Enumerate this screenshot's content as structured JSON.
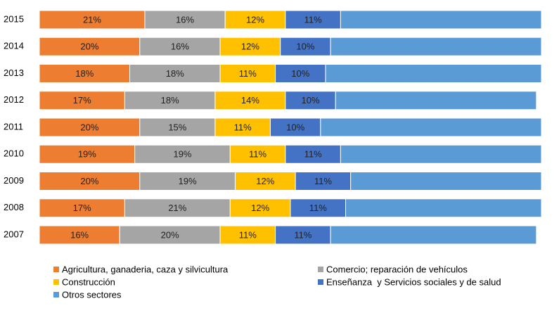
{
  "chart_data": {
    "type": "stacked-bar-horizontal",
    "categories": [
      "2015",
      "2014",
      "2013",
      "2012",
      "2011",
      "2010",
      "2009",
      "2008",
      "2007"
    ],
    "xlim": [
      0,
      100
    ],
    "series": [
      {
        "name": "Agricultura, ganaderia, caza y silvicultura",
        "color": "#ed7d31",
        "values": [
          21,
          20,
          18,
          17,
          20,
          19,
          20,
          17,
          16
        ],
        "value_labels": [
          "21%",
          "20%",
          "18%",
          "17%",
          "20%",
          "19%",
          "20%",
          "17%",
          "16%"
        ]
      },
      {
        "name": "Comercio; reparación de vehículos",
        "color": "#a5a5a5",
        "values": [
          16,
          16,
          18,
          18,
          15,
          19,
          19,
          21,
          20
        ],
        "value_labels": [
          "16%",
          "16%",
          "18%",
          "18%",
          "15%",
          "19%",
          "19%",
          "21%",
          "20%"
        ]
      },
      {
        "name": "Construcción",
        "color": "#ffc000",
        "values": [
          12,
          12,
          11,
          14,
          11,
          11,
          12,
          12,
          11
        ],
        "value_labels": [
          "12%",
          "12%",
          "11%",
          "14%",
          "11%",
          "11%",
          "12%",
          "12%",
          "11%"
        ]
      },
      {
        "name": "Enseñanza  y Servicios sociales y de salud",
        "color": "#4472c4",
        "values": [
          11,
          10,
          10,
          10,
          10,
          11,
          11,
          11,
          11
        ],
        "value_labels": [
          "11%",
          "10%",
          "10%",
          "10%",
          "10%",
          "11%",
          "11%",
          "11%",
          "11%"
        ]
      },
      {
        "name": "Otros sectores",
        "color": "#5b9bd5",
        "values": [
          40,
          42,
          43,
          40,
          44,
          40,
          38,
          39,
          41
        ]
      }
    ]
  }
}
